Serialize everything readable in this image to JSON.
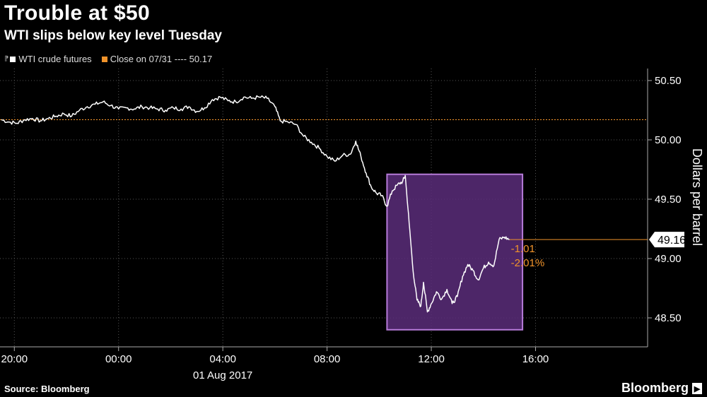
{
  "title": "Trouble at $50",
  "subtitle": "WTI slips below key level Tuesday",
  "legend": {
    "series": "WTI crude futures",
    "close": "Close on 07/31 ---- 50.17"
  },
  "source": "Source: Bloomberg",
  "brand": "Bloomberg",
  "brand_mark": "▶",
  "colors": {
    "line": "#ffffff",
    "close_line": "#f0932b",
    "highlight_fill": "#5a2d7a",
    "highlight_border": "#b57ad8",
    "change_text": "#f0932b"
  },
  "chart_data": {
    "type": "line",
    "title": "Trouble at $50",
    "subtitle": "WTI slips below key level Tuesday",
    "ylabel": "Dollars per barrel",
    "ylim": [
      48.25,
      50.6
    ],
    "y_ticks": [
      "48.50",
      "49.00",
      "49.50",
      "50.00",
      "50.50"
    ],
    "x_ticks": [
      "20:00",
      "00:00",
      "04:00",
      "08:00",
      "12:00",
      "16:00"
    ],
    "x_date_label": "01 Aug 2017",
    "x_range_hours": [
      -4.55,
      20.3
    ],
    "reference_line": {
      "label": "Close on 07/31",
      "value": 50.17
    },
    "last_value": "49.16",
    "change_abs": "-1.01",
    "change_pct": "-2.01%",
    "highlight": {
      "x": [
        10.3,
        15.5
      ],
      "y": [
        48.4,
        49.71
      ]
    },
    "series": [
      {
        "name": "WTI crude futures",
        "points": [
          [
            -4.5,
            50.17
          ],
          [
            -4.2,
            50.15
          ],
          [
            -3.9,
            50.14
          ],
          [
            -3.6,
            50.17
          ],
          [
            -3.3,
            50.18
          ],
          [
            -3.0,
            50.16
          ],
          [
            -2.7,
            50.18
          ],
          [
            -2.4,
            50.2
          ],
          [
            -2.1,
            50.22
          ],
          [
            -1.8,
            50.2
          ],
          [
            -1.5,
            50.25
          ],
          [
            -1.2,
            50.28
          ],
          [
            -0.9,
            50.3
          ],
          [
            -0.6,
            50.32
          ],
          [
            -0.3,
            50.29
          ],
          [
            0.0,
            50.26
          ],
          [
            0.3,
            50.27
          ],
          [
            0.6,
            50.26
          ],
          [
            0.9,
            50.28
          ],
          [
            1.2,
            50.27
          ],
          [
            1.5,
            50.26
          ],
          [
            1.8,
            50.25
          ],
          [
            2.1,
            50.27
          ],
          [
            2.4,
            50.26
          ],
          [
            2.7,
            50.28
          ],
          [
            3.0,
            50.24
          ],
          [
            3.3,
            50.27
          ],
          [
            3.6,
            50.34
          ],
          [
            3.9,
            50.36
          ],
          [
            4.2,
            50.33
          ],
          [
            4.5,
            50.32
          ],
          [
            4.8,
            50.36
          ],
          [
            5.1,
            50.35
          ],
          [
            5.4,
            50.36
          ],
          [
            5.7,
            50.35
          ],
          [
            6.0,
            50.28
          ],
          [
            6.2,
            50.16
          ],
          [
            6.5,
            50.15
          ],
          [
            6.8,
            50.13
          ],
          [
            7.1,
            50.03
          ],
          [
            7.4,
            49.98
          ],
          [
            7.7,
            49.93
          ],
          [
            8.0,
            49.86
          ],
          [
            8.3,
            49.82
          ],
          [
            8.6,
            49.87
          ],
          [
            8.9,
            49.88
          ],
          [
            9.1,
            49.99
          ],
          [
            9.3,
            49.86
          ],
          [
            9.5,
            49.72
          ],
          [
            9.7,
            49.6
          ],
          [
            9.9,
            49.55
          ],
          [
            10.1,
            49.53
          ],
          [
            10.3,
            49.44
          ],
          [
            10.5,
            49.57
          ],
          [
            10.7,
            49.62
          ],
          [
            10.9,
            49.65
          ],
          [
            11.0,
            49.7
          ],
          [
            11.15,
            49.3
          ],
          [
            11.3,
            48.9
          ],
          [
            11.45,
            48.65
          ],
          [
            11.6,
            48.6
          ],
          [
            11.7,
            48.8
          ],
          [
            11.85,
            48.55
          ],
          [
            12.0,
            48.62
          ],
          [
            12.2,
            48.72
          ],
          [
            12.4,
            48.66
          ],
          [
            12.6,
            48.74
          ],
          [
            12.8,
            48.62
          ],
          [
            13.0,
            48.68
          ],
          [
            13.2,
            48.85
          ],
          [
            13.4,
            48.95
          ],
          [
            13.6,
            48.9
          ],
          [
            13.8,
            48.82
          ],
          [
            14.0,
            48.92
          ],
          [
            14.2,
            48.97
          ],
          [
            14.4,
            48.94
          ],
          [
            14.6,
            49.16
          ],
          [
            14.8,
            49.18
          ],
          [
            15.0,
            49.16
          ]
        ]
      }
    ]
  }
}
